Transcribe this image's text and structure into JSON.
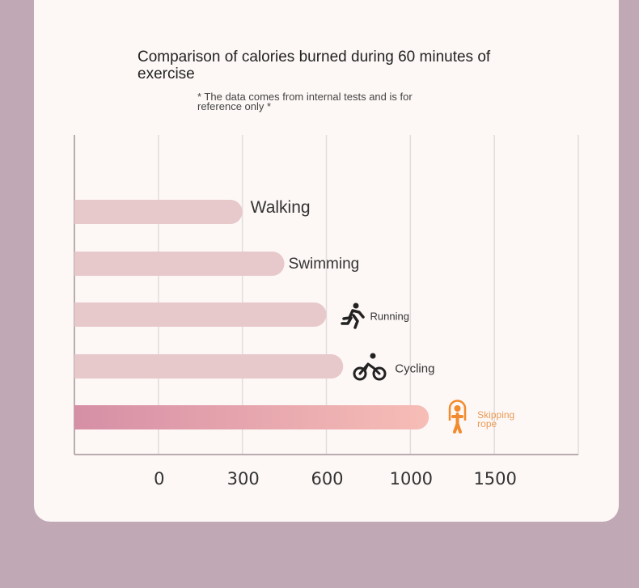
{
  "chart_data": {
    "type": "bar",
    "orientation": "horizontal",
    "title": "Comparison of calories burned during 60 minutes of exercise",
    "subtitle": "* The data comes from internal tests and is for reference only *",
    "categories": [
      "Walking",
      "Swimming",
      "Running",
      "Cycling",
      "Skipping rope"
    ],
    "values": [
      300,
      450,
      600,
      680,
      1110
    ],
    "color": "#e8c9cb",
    "xticks": [
      0,
      300,
      600,
      1000,
      1500
    ],
    "grid": true
  }
}
